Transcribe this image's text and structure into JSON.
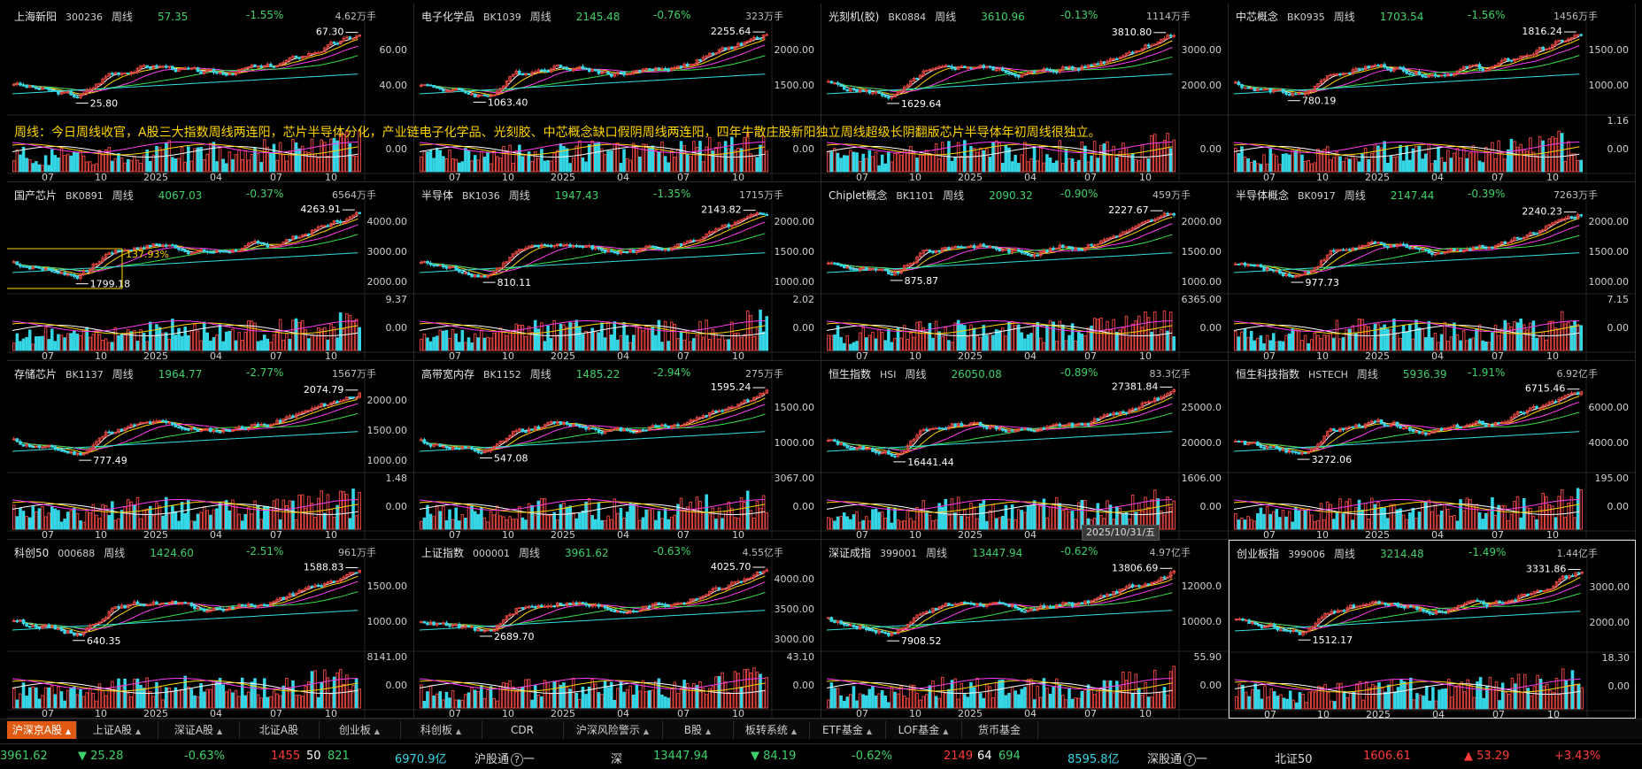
{
  "overlay_text": "周线：今日周线收官，A股三大指数周线两连阳，芯片半导体分化，产业链电子化学品、光刻胶、中芯概念缺口假阴周线两连阳，四年牛散庄股新阳独立周线超级长阴翻版芯片半导体年初周线很独立。",
  "date_tooltip": "2025/10/31/五",
  "period_label": "周线",
  "x_labels": [
    "07",
    "10",
    "2025",
    "04",
    "07",
    "10"
  ],
  "panels": [
    {
      "name": "上海新阳",
      "code": "300236",
      "price": "57.35",
      "change": "-1.55%",
      "vol": "4.62万手",
      "high": "67.30",
      "low": "25.80",
      "axis": [
        "60.00",
        "40.00"
      ],
      "vol_axis": [
        "",
        "0.00"
      ],
      "ups": true
    },
    {
      "name": "电子化学品",
      "code": "BK1039",
      "price": "2145.48",
      "change": "-0.76%",
      "vol": "323万手",
      "high": "2255.64",
      "low": "1063.40",
      "axis": [
        "2000.00",
        "1500.00"
      ],
      "vol_axis": [
        "",
        "0.00"
      ]
    },
    {
      "name": "光刻机(胶)",
      "code": "BK0884",
      "price": "3610.96",
      "change": "-0.13%",
      "vol": "1114万手",
      "high": "3810.80",
      "low": "1629.64",
      "axis": [
        "3000.00",
        "2000.00"
      ],
      "vol_axis": [
        "",
        "0.00"
      ]
    },
    {
      "name": "中芯概念",
      "code": "BK0935",
      "price": "1703.54",
      "change": "-1.56%",
      "vol": "1456万手",
      "high": "1816.24",
      "low": "780.19",
      "axis": [
        "1500.00",
        "1000.00"
      ],
      "vol_axis": [
        "1.16",
        "0.00"
      ]
    },
    {
      "name": "国产芯片",
      "code": "BK0891",
      "price": "4067.03",
      "change": "-0.37%",
      "vol": "6564万手",
      "high": "4263.91",
      "low": "1799.18",
      "axis": [
        "4000.00",
        "3000.00",
        "2000.00"
      ],
      "vol_axis": [
        "9.37",
        "0.00"
      ],
      "note": "137.93%"
    },
    {
      "name": "半导体",
      "code": "BK1036",
      "price": "1947.43",
      "change": "-1.35%",
      "vol": "1715万手",
      "high": "2143.82",
      "low": "810.11",
      "axis": [
        "2000.00",
        "1500.00",
        "1000.00"
      ],
      "vol_axis": [
        "2.02",
        "0.00"
      ]
    },
    {
      "name": "Chiplet概念",
      "code": "BK1101",
      "price": "2090.32",
      "change": "-0.90%",
      "vol": "459万手",
      "high": "2227.67",
      "low": "875.87",
      "axis": [
        "2000.00",
        "1500.00",
        "1000.00"
      ],
      "vol_axis": [
        "6365.00",
        "0.00"
      ]
    },
    {
      "name": "半导体概念",
      "code": "BK0917",
      "price": "2147.44",
      "change": "-0.39%",
      "vol": "7263万手",
      "high": "2240.23",
      "low": "977.73",
      "axis": [
        "2000.00",
        "1500.00",
        "1000.00"
      ],
      "vol_axis": [
        "7.15",
        "0.00"
      ]
    },
    {
      "name": "存储芯片",
      "code": "BK1137",
      "price": "1964.77",
      "change": "-2.77%",
      "vol": "1567万手",
      "high": "2074.79",
      "low": "777.49",
      "axis": [
        "2000.00",
        "1500.00",
        "1000.00"
      ],
      "vol_axis": [
        "1.48",
        "0.00"
      ]
    },
    {
      "name": "高带宽内存",
      "code": "BK1152",
      "price": "1485.22",
      "change": "-2.94%",
      "vol": "275万手",
      "high": "1595.24",
      "low": "547.08",
      "axis": [
        "1500.00",
        "1000.00"
      ],
      "vol_axis": [
        "3067.00",
        "0.00"
      ]
    },
    {
      "name": "恒生指数",
      "code": "HSI",
      "price": "26050.08",
      "change": "-0.89%",
      "vol": "83.3亿手",
      "high": "27381.84",
      "low": "16441.44",
      "axis": [
        "25000.0",
        "20000.0"
      ],
      "vol_axis": [
        "1606.00",
        "0.00"
      ]
    },
    {
      "name": "恒生科技指数",
      "code": "HSTECH",
      "price": "5936.39",
      "change": "-1.91%",
      "vol": "6.92亿手",
      "high": "6715.46",
      "low": "3272.06",
      "axis": [
        "6000.00",
        "4000.00"
      ],
      "vol_axis": [
        "195.00",
        "0.00"
      ]
    },
    {
      "name": "科创50",
      "code": "000688",
      "price": "1424.60",
      "change": "-2.51%",
      "vol": "961万手",
      "high": "1588.83",
      "low": "640.35",
      "axis": [
        "1500.00",
        "1000.00"
      ],
      "vol_axis": [
        "8141.00",
        "0.00"
      ]
    },
    {
      "name": "上证指数",
      "code": "000001",
      "price": "3961.62",
      "change": "-0.63%",
      "vol": "4.55亿手",
      "high": "4025.70",
      "low": "2689.70",
      "axis": [
        "4000.00",
        "3500.00",
        "3000.00"
      ],
      "vol_axis": [
        "43.10",
        "0.00"
      ]
    },
    {
      "name": "深证成指",
      "code": "399001",
      "price": "13447.94",
      "change": "-0.62%",
      "vol": "4.97亿手",
      "high": "13806.69",
      "low": "7908.52",
      "axis": [
        "12000.0",
        "10000.0"
      ],
      "vol_axis": [
        "55.90",
        "0.00"
      ]
    },
    {
      "name": "创业板指",
      "code": "399006",
      "price": "3214.48",
      "change": "-1.49%",
      "vol": "1.44亿手",
      "high": "3331.86",
      "low": "1512.17",
      "axis": [
        "3000.00",
        "2000.00"
      ],
      "vol_axis": [
        "18.30",
        "0.00"
      ]
    }
  ],
  "tabs": [
    {
      "label": "沪深京A股",
      "caret": true
    },
    {
      "label": "上证A股",
      "caret": true
    },
    {
      "label": "深证A股",
      "caret": true
    },
    {
      "label": "北证A股",
      "caret": false
    },
    {
      "label": "创业板",
      "caret": true
    },
    {
      "label": "科创板",
      "caret": true
    },
    {
      "label": "CDR",
      "caret": false
    },
    {
      "label": "沪深风险警示",
      "caret": true
    },
    {
      "label": "B股",
      "caret": true
    },
    {
      "label": "板转系统",
      "caret": true
    },
    {
      "label": "ETF基金",
      "caret": true
    },
    {
      "label": "LOF基金",
      "caret": true
    },
    {
      "label": "货币基金",
      "caret": false
    }
  ],
  "status": {
    "sh_index": "3961.62",
    "sh_delta": "▼ 25.28",
    "sh_pct": "-0.63%",
    "sh_up": "1455",
    "sh_flat": "50",
    "sh_down": "821",
    "sh_amount": "6970.9亿",
    "hgt_label": "沪股通",
    "hgt_icon": "?",
    "hgt_val": "一",
    "sz_label": "深",
    "sz_index": "13447.94",
    "sz_delta": "▼ 84.19",
    "sz_pct": "-0.62%",
    "sz_up": "2149",
    "sz_flat": "64",
    "sz_down": "694",
    "sz_amount": "8595.8亿",
    "sgt_label": "深股通",
    "sgt_icon": "?",
    "sgt_val": "一",
    "bz_label": "北证50",
    "bz_index": "1606.61",
    "bz_delta": "▲ 53.29",
    "bz_pct": "+3.43%"
  },
  "colors": {
    "up": "#ff3b3b",
    "down": "#3ed06a",
    "bar_up": "#e0433e",
    "bar_down": "#35d6e6",
    "ma5": "#ffffff",
    "ma10": "#ffd400",
    "ma20": "#ff3cf0",
    "ma60": "#37e04a",
    "accent": "#e05a13"
  }
}
